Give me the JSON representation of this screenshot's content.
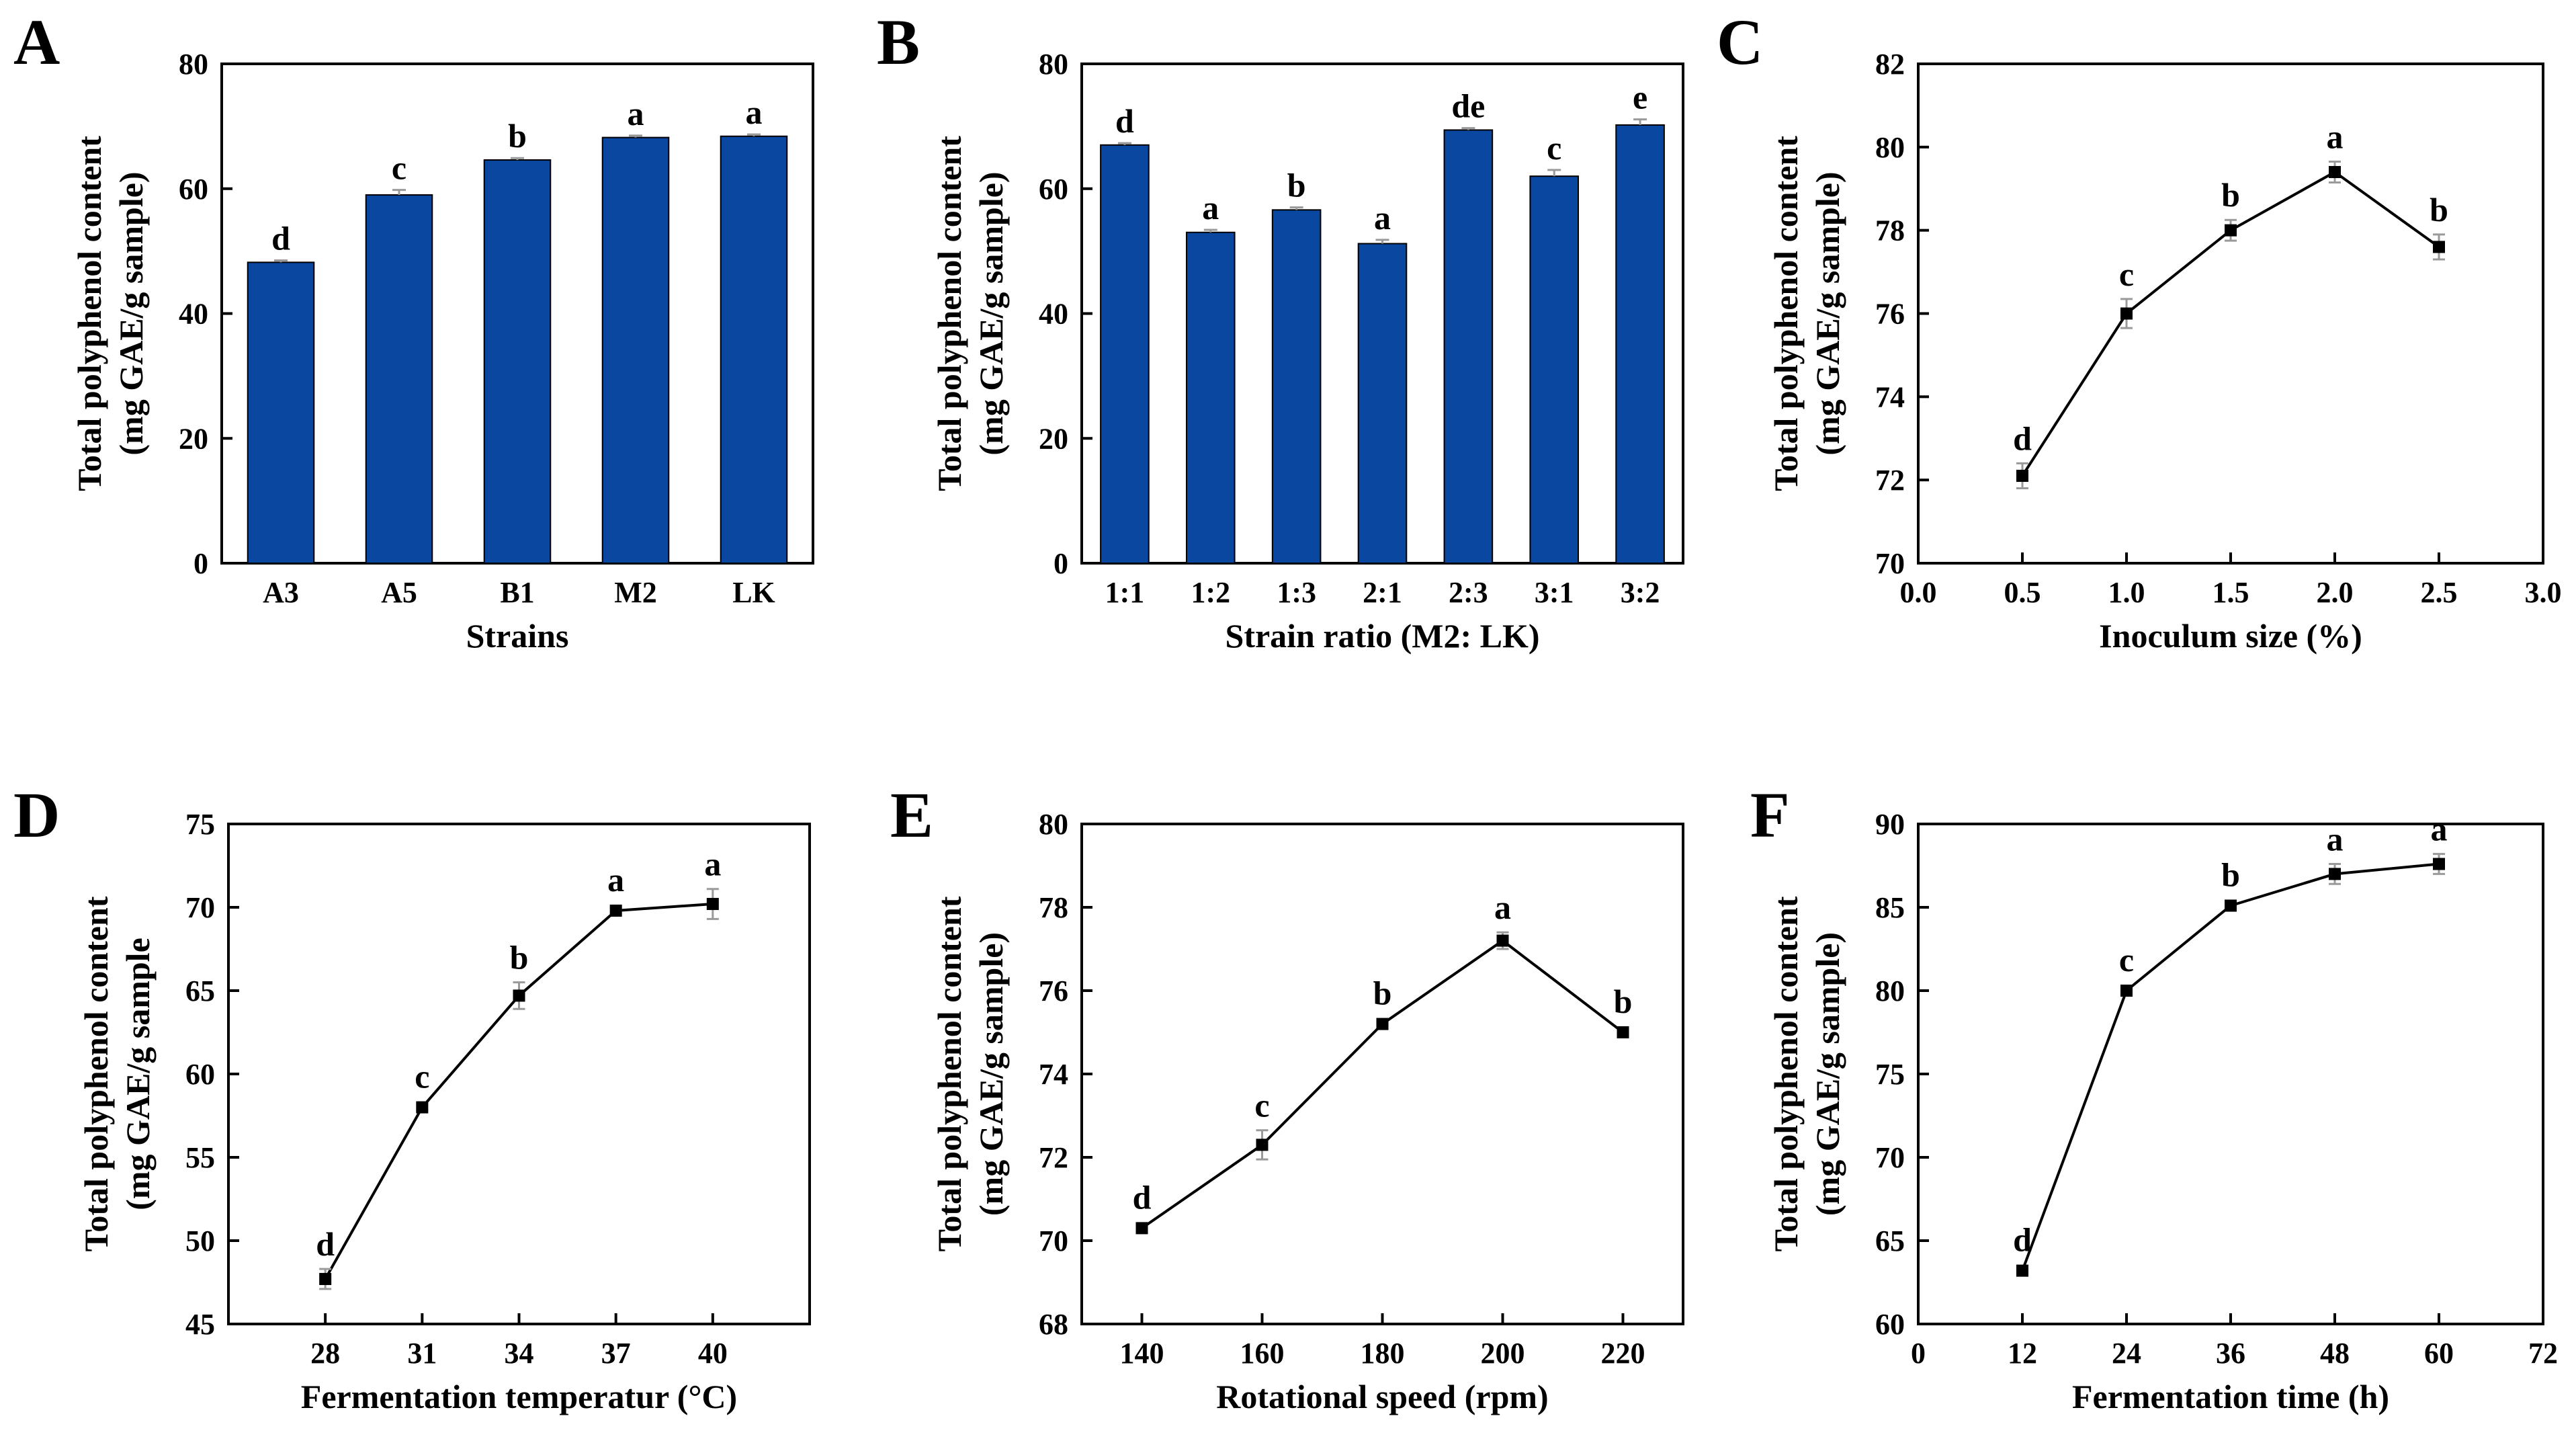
{
  "figure_kind": "multi-panel",
  "colors": {
    "bar": "#0a47a0",
    "line": "#000000",
    "error": "#9a9a9a"
  },
  "chart_data": [
    {
      "id": "A",
      "panel_label": "A",
      "type": "bar",
      "xlabel": "Strains",
      "ylabel": [
        "Total polyphenol content",
        "(mg GAE/g sample)"
      ],
      "ylim": [
        0,
        80
      ],
      "yticks": [
        "0",
        "20",
        "40",
        "60",
        "80"
      ],
      "categories": [
        "A3",
        "A5",
        "B1",
        "M2",
        "LK"
      ],
      "values": [
        48.2,
        59.0,
        64.6,
        68.2,
        68.4
      ],
      "errors": [
        0.3,
        0.8,
        0.3,
        0.3,
        0.3
      ],
      "letters": [
        "d",
        "c",
        "b",
        "a",
        "a"
      ]
    },
    {
      "id": "B",
      "panel_label": "B",
      "type": "bar",
      "xlabel": "Strain ratio (M2: LK)",
      "ylabel": [
        "Total polyphenol content",
        "(mg GAE/g sample)"
      ],
      "ylim": [
        0,
        80
      ],
      "yticks": [
        "0",
        "20",
        "40",
        "60",
        "80"
      ],
      "categories": [
        "1:1",
        "1:2",
        "1:3",
        "2:1",
        "2:3",
        "3:1",
        "3:2"
      ],
      "values": [
        67.0,
        53.0,
        56.6,
        51.2,
        69.4,
        62.0,
        70.2
      ],
      "errors": [
        0.3,
        0.4,
        0.4,
        0.6,
        0.3,
        1.0,
        0.9
      ],
      "letters": [
        "d",
        "a",
        "b",
        "a",
        "de",
        "c",
        "e"
      ]
    },
    {
      "id": "C",
      "panel_label": "C",
      "type": "line",
      "xlabel": "Inoculum size (%)",
      "ylabel": [
        "Total polyphenol content",
        "(mg GAE/g sample)"
      ],
      "xlim": [
        0,
        3
      ],
      "xticks": [
        "0.0",
        "0.5",
        "1.0",
        "1.5",
        "2.0",
        "2.5",
        "3.0"
      ],
      "ylim": [
        70,
        82
      ],
      "yticks": [
        "70",
        "72",
        "74",
        "76",
        "78",
        "80",
        "82"
      ],
      "x": [
        0.5,
        1.0,
        1.5,
        2.0,
        2.5
      ],
      "y": [
        72.1,
        76.0,
        78.0,
        79.4,
        77.6
      ],
      "errors": [
        0.3,
        0.35,
        0.25,
        0.25,
        0.3
      ],
      "letters": [
        "d",
        "c",
        "b",
        "a",
        "b"
      ]
    },
    {
      "id": "D",
      "panel_label": "D",
      "type": "line",
      "xlabel": "Fermentation temperatur (°C)",
      "ylabel": [
        "Total polyphenol content",
        "(mg GAE/g sample"
      ],
      "xlim": [
        25,
        43
      ],
      "xticks": [
        "28",
        "31",
        "34",
        "37",
        "40"
      ],
      "ylim": [
        45,
        75
      ],
      "yticks": [
        "45",
        "50",
        "55",
        "60",
        "65",
        "70",
        "75"
      ],
      "x": [
        28,
        31,
        34,
        37,
        40
      ],
      "y": [
        47.7,
        58.0,
        64.7,
        69.8,
        70.2
      ],
      "errors": [
        0.6,
        0.2,
        0.8,
        0.2,
        0.9
      ],
      "letters": [
        "d",
        "c",
        "b",
        "a",
        "a"
      ]
    },
    {
      "id": "E",
      "panel_label": "E",
      "type": "line",
      "xlabel": "Rotational speed (rpm)",
      "ylabel": [
        "Total polyphenol content",
        "(mg GAE/g sample)"
      ],
      "xlim": [
        130,
        230
      ],
      "xticks": [
        "140",
        "160",
        "180",
        "200",
        "220"
      ],
      "ylim": [
        68,
        80
      ],
      "yticks": [
        "68",
        "70",
        "72",
        "74",
        "76",
        "78",
        "80"
      ],
      "x": [
        140,
        160,
        180,
        200,
        220
      ],
      "y": [
        70.3,
        72.3,
        75.2,
        77.2,
        75.0
      ],
      "errors": [
        0.1,
        0.35,
        0.1,
        0.2,
        0.1
      ],
      "letters": [
        "d",
        "c",
        "b",
        "a",
        "b"
      ]
    },
    {
      "id": "F",
      "panel_label": "F",
      "type": "line",
      "xlabel": "Fermentation time (h)",
      "ylabel": [
        "Total polyphenol content",
        "(mg GAE/g sample)"
      ],
      "xlim": [
        0,
        72
      ],
      "xticks": [
        "0",
        "12",
        "24",
        "36",
        "48",
        "60",
        "72"
      ],
      "ylim": [
        60,
        90
      ],
      "yticks": [
        "60",
        "65",
        "70",
        "75",
        "80",
        "85",
        "90"
      ],
      "x": [
        12,
        24,
        36,
        48,
        60
      ],
      "y": [
        63.2,
        80.0,
        85.1,
        87.0,
        87.6
      ],
      "errors": [
        0.2,
        0.2,
        0.3,
        0.6,
        0.6
      ],
      "letters": [
        "d",
        "c",
        "b",
        "a",
        "a"
      ]
    }
  ]
}
